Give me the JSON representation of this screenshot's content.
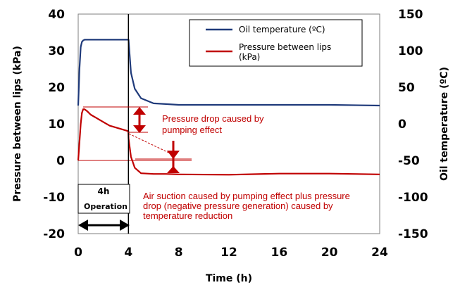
{
  "chart_data": {
    "type": "line",
    "x": [
      0,
      0.1,
      0.2,
      0.3,
      0.4,
      0.5,
      0.7,
      1,
      1.5,
      2,
      2.5,
      3,
      3.5,
      3.99,
      4.01,
      4.2,
      4.5,
      5,
      6,
      7,
      8,
      12,
      16,
      20,
      24
    ],
    "series": [
      {
        "name": "Oil temperature (ºC)",
        "axis": "right",
        "color": "#1f3a7a",
        "values": [
          25,
          75,
          105,
          112,
          114,
          115,
          115,
          115,
          115,
          115,
          115,
          115,
          115,
          115,
          115,
          70,
          48,
          35,
          28,
          27,
          26,
          26,
          26,
          26,
          25
        ]
      },
      {
        "name": "Pressure between lips (kPa)",
        "axis": "left",
        "color": "#c00000",
        "values": [
          0,
          5,
          10,
          13,
          14,
          14,
          13.5,
          12.5,
          11.5,
          10.5,
          9.5,
          9,
          8.5,
          8,
          6,
          1,
          -2,
          -3.5,
          -3.7,
          -3.7,
          -3.8,
          -3.9,
          -3.6,
          -3.6,
          -3.8
        ]
      }
    ],
    "xlabel": "Time (h)",
    "ylabel_left": "Pressure between lips (kPa)",
    "ylabel_right": "Oil temperature (ºC)",
    "xlim": [
      0,
      24
    ],
    "xticks": [
      0,
      4,
      8,
      12,
      16,
      20,
      24
    ],
    "ylim_left": [
      -20,
      40
    ],
    "yticks_left": [
      -20,
      -10,
      0,
      10,
      20,
      30,
      40
    ],
    "ylim_right": [
      -150,
      150
    ],
    "yticks_right": [
      -150,
      -100,
      -50,
      0,
      50,
      100,
      150
    ],
    "grid": false,
    "legend_position": "top-right",
    "annotations": {
      "pressure_drop": "Pressure drop caused by pumping effect",
      "air_suction": "Air suction caused by pumping effect plus pressure drop (negative pressure generation) caused by temperature reduction",
      "duration_label": "4h",
      "operation_label": "Operation"
    }
  }
}
